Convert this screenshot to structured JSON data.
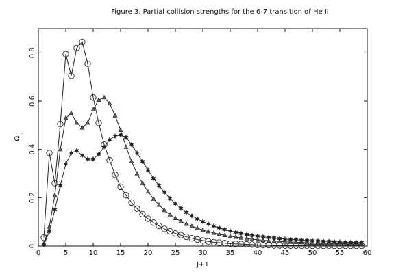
{
  "chart_data": {
    "type": "line",
    "title": "Figure 3. Partial collision strengths for the 6-7 transition of He II",
    "xlabel": "J+1",
    "ylabel": "Ω",
    "ylabel_sub": "J",
    "xlim": [
      0,
      60
    ],
    "ylim": [
      0,
      0.9
    ],
    "xticks": [
      0,
      5,
      10,
      15,
      20,
      25,
      30,
      35,
      40,
      45,
      50,
      55,
      60
    ],
    "yticks": [
      0,
      0.2,
      0.4,
      0.6,
      0.8
    ],
    "xtick_labels": [
      "0",
      "5",
      "10",
      "15",
      "20",
      "25",
      "30",
      "35",
      "40",
      "45",
      "50",
      "55",
      "60"
    ],
    "ytick_labels": [
      "0",
      "0.2",
      "0.4",
      "0.6",
      "0.8"
    ],
    "grid": false,
    "series": [
      {
        "marker": "circle",
        "x": [
          1,
          2,
          3,
          4,
          5,
          6,
          7,
          8,
          9,
          10,
          11,
          12,
          13,
          14,
          15,
          16,
          17,
          18,
          19,
          20,
          21,
          22,
          23,
          24,
          25,
          26,
          27,
          28,
          29,
          30,
          31,
          32,
          33,
          34,
          35,
          36,
          37,
          38,
          39,
          40,
          41,
          42,
          43,
          44,
          45,
          46,
          47,
          48,
          49,
          50,
          51,
          52,
          53,
          54,
          55,
          56,
          57,
          58,
          59
        ],
        "y": [
          0.035,
          0.385,
          0.26,
          0.505,
          0.795,
          0.705,
          0.82,
          0.845,
          0.755,
          0.615,
          0.51,
          0.42,
          0.355,
          0.295,
          0.245,
          0.21,
          0.18,
          0.155,
          0.132,
          0.113,
          0.097,
          0.083,
          0.071,
          0.061,
          0.052,
          0.045,
          0.038,
          0.032,
          0.027,
          0.023,
          0.019,
          0.016,
          0.014,
          0.012,
          0.01,
          0.009,
          0.008,
          0.007,
          0.006,
          0.005,
          0.004,
          0.004,
          0.003,
          0.003,
          0.002,
          0.002,
          0.002,
          0.002,
          0.001,
          0.001,
          0.001,
          0.001,
          0.001,
          0.001,
          0.001,
          0.001,
          0.001,
          0.001,
          0.001
        ]
      },
      {
        "marker": "triangle",
        "x": [
          1,
          2,
          3,
          4,
          5,
          6,
          7,
          8,
          9,
          10,
          11,
          12,
          13,
          14,
          15,
          16,
          17,
          18,
          19,
          20,
          21,
          22,
          23,
          24,
          25,
          26,
          27,
          28,
          29,
          30,
          31,
          32,
          33,
          34,
          35,
          36,
          37,
          38,
          39,
          40,
          41,
          42,
          43,
          44,
          45,
          46,
          47,
          48,
          49,
          50,
          51,
          52,
          53,
          54,
          55,
          56,
          57,
          58,
          59
        ],
        "y": [
          0.01,
          0.08,
          0.21,
          0.4,
          0.53,
          0.55,
          0.51,
          0.49,
          0.51,
          0.565,
          0.605,
          0.615,
          0.59,
          0.54,
          0.48,
          0.41,
          0.35,
          0.3,
          0.26,
          0.225,
          0.195,
          0.17,
          0.148,
          0.13,
          0.115,
          0.102,
          0.091,
          0.082,
          0.074,
          0.066,
          0.06,
          0.054,
          0.049,
          0.044,
          0.04,
          0.037,
          0.034,
          0.031,
          0.028,
          0.026,
          0.024,
          0.022,
          0.021,
          0.019,
          0.018,
          0.017,
          0.016,
          0.015,
          0.014,
          0.013,
          0.012,
          0.012,
          0.011,
          0.01,
          0.01,
          0.009,
          0.009,
          0.008,
          0.008
        ]
      },
      {
        "marker": "star",
        "x": [
          1,
          2,
          3,
          4,
          5,
          6,
          7,
          8,
          9,
          10,
          11,
          12,
          13,
          14,
          15,
          16,
          17,
          18,
          19,
          20,
          21,
          22,
          23,
          24,
          25,
          26,
          27,
          28,
          29,
          30,
          31,
          32,
          33,
          34,
          35,
          36,
          37,
          38,
          39,
          40,
          41,
          42,
          43,
          44,
          45,
          46,
          47,
          48,
          49,
          50,
          51,
          52,
          53,
          54,
          55,
          56,
          57,
          58,
          59
        ],
        "y": [
          0.005,
          0.06,
          0.15,
          0.25,
          0.34,
          0.385,
          0.395,
          0.375,
          0.36,
          0.36,
          0.38,
          0.41,
          0.44,
          0.455,
          0.46,
          0.45,
          0.42,
          0.385,
          0.35,
          0.315,
          0.28,
          0.25,
          0.222,
          0.197,
          0.175,
          0.156,
          0.139,
          0.125,
          0.112,
          0.101,
          0.091,
          0.083,
          0.075,
          0.068,
          0.062,
          0.057,
          0.052,
          0.048,
          0.044,
          0.041,
          0.038,
          0.035,
          0.033,
          0.031,
          0.029,
          0.027,
          0.026,
          0.024,
          0.023,
          0.022,
          0.021,
          0.02,
          0.019,
          0.018,
          0.017,
          0.016,
          0.016,
          0.015,
          0.015
        ]
      }
    ]
  }
}
